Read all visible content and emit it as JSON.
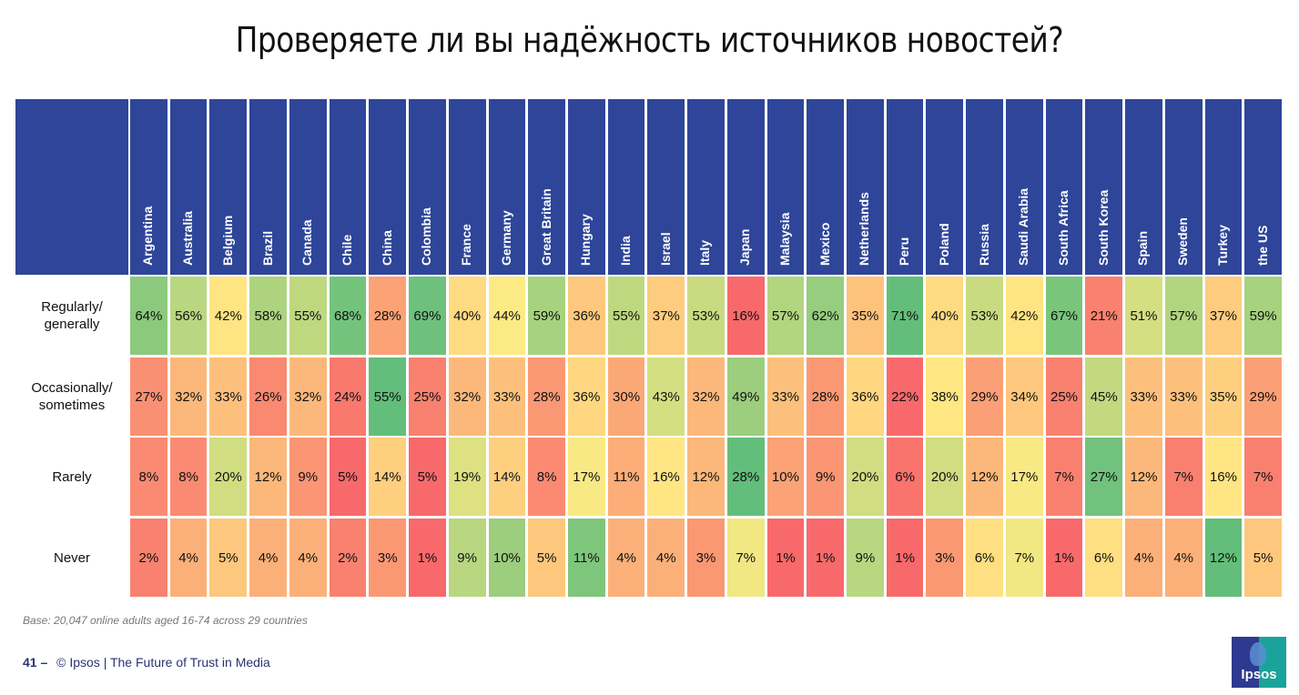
{
  "page": {
    "title": "Проверяете ли вы надёжность источников новостей?",
    "base_note": "Base: 20,047 online adults aged 16-74 across 29 countries",
    "footer_page": "41 –",
    "footer_text": "© Ipsos | The Future of Trust in Media",
    "logo_text": "Ipsos"
  },
  "colors": {
    "header_blue": "#2e4599",
    "scale_low": "#f8696b",
    "scale_mid": "#ffeb84",
    "scale_high": "#63be7b"
  },
  "chart_data": {
    "type": "heatmap",
    "title": "Проверяете ли вы надёжность источников новостей?",
    "unit": "%",
    "columns": [
      "Argentina",
      "Australia",
      "Belgium",
      "Brazil",
      "Canada",
      "Chile",
      "China",
      "Colombia",
      "France",
      "Germany",
      "Great Britain",
      "Hungary",
      "India",
      "Israel",
      "Italy",
      "Japan",
      "Malaysia",
      "Mexico",
      "Netherlands",
      "Peru",
      "Poland",
      "Russia",
      "Saudi Arabia",
      "South Africa",
      "South Korea",
      "Spain",
      "Sweden",
      "Turkey",
      "the US"
    ],
    "rows": [
      {
        "label": "Regularly/ generally",
        "values": [
          64,
          56,
          42,
          58,
          55,
          68,
          28,
          69,
          40,
          44,
          59,
          36,
          55,
          37,
          53,
          16,
          57,
          62,
          35,
          71,
          40,
          53,
          42,
          67,
          21,
          51,
          57,
          37,
          59
        ]
      },
      {
        "label": "Occasionally/ sometimes",
        "values": [
          27,
          32,
          33,
          26,
          32,
          24,
          55,
          25,
          32,
          33,
          28,
          36,
          30,
          43,
          32,
          49,
          33,
          28,
          36,
          22,
          38,
          29,
          34,
          25,
          45,
          33,
          33,
          35,
          29
        ]
      },
      {
        "label": "Rarely",
        "values": [
          8,
          8,
          20,
          12,
          9,
          5,
          14,
          5,
          19,
          14,
          8,
          17,
          11,
          16,
          12,
          28,
          10,
          9,
          20,
          6,
          20,
          12,
          17,
          7,
          27,
          12,
          7,
          16,
          7
        ]
      },
      {
        "label": "Never",
        "values": [
          2,
          4,
          5,
          4,
          4,
          2,
          3,
          1,
          9,
          10,
          5,
          11,
          4,
          4,
          3,
          7,
          1,
          1,
          9,
          1,
          3,
          6,
          7,
          1,
          6,
          4,
          4,
          12,
          5
        ]
      }
    ],
    "color_scale": "per-row red-yellow-green (low to high)"
  }
}
